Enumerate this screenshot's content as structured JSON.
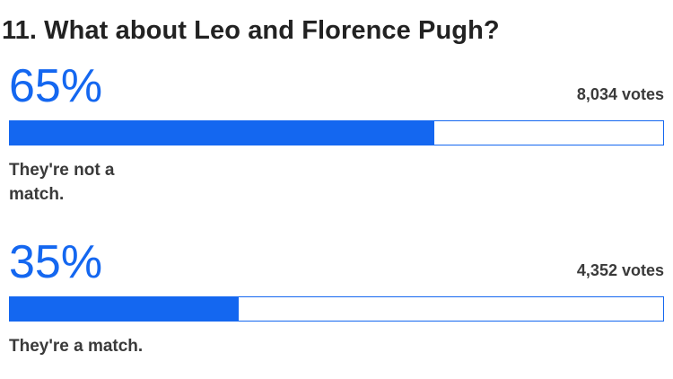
{
  "question": {
    "title": "11. What about Leo and Florence Pugh?"
  },
  "options": [
    {
      "percent_text": "65%",
      "percent": 65,
      "votes_text": "8,034 votes",
      "label": "They're not a match."
    },
    {
      "percent_text": "35%",
      "percent": 35,
      "votes_text": "4,352 votes",
      "label": "They're a match."
    }
  ],
  "colors": {
    "accent": "#1467f0",
    "text": "#222222",
    "muted_text": "#3a3a3a"
  }
}
